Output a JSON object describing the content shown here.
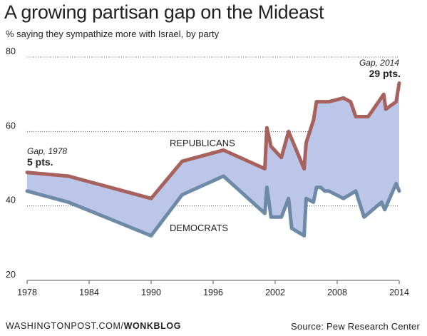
{
  "title": "A growing partisan gap on the Mideast",
  "subtitle": "% saying they sympathize more with Israel, by party",
  "footer": {
    "publisher": "WASHINGTONPOST.COM/",
    "section": "WONKBLOG",
    "source": "Source: Pew Research Center"
  },
  "colors": {
    "republicans": "#a8625e",
    "democrats": "#6d8aa6",
    "gap_fill": "#bcc6e8",
    "grid": "#333333",
    "axis": "#555555"
  },
  "chart_data": {
    "type": "area",
    "title": "A growing partisan gap on the Mideast",
    "subtitle": "% saying they sympathize more with Israel, by party",
    "xlim": [
      1978,
      2014
    ],
    "ylim": [
      20,
      80
    ],
    "x_ticks": [
      1978,
      1984,
      1990,
      1996,
      2002,
      2008,
      2014
    ],
    "x_tick_labels": [
      "1978",
      "1984",
      "1990",
      "1996",
      "2002",
      "2008",
      "2014"
    ],
    "y_ticks": [
      20,
      40,
      60,
      80
    ],
    "y_tick_labels": [
      "20",
      "40",
      "60",
      "80"
    ],
    "grid": true,
    "series": [
      {
        "name": "REPUBLICANS",
        "x": [
          1978,
          1982,
          1990,
          1993,
          1997,
          2001,
          2001.2,
          2001.6,
          2002.6,
          2003.3,
          2004.8,
          2005,
          2005.7,
          2006,
          2006.4,
          2006.8,
          2007.2,
          2008.6,
          2009.3,
          2009.8,
          2011,
          2012.5,
          2012.7,
          2013.7,
          2014
        ],
        "values": [
          49,
          48,
          42,
          52,
          55,
          50,
          61,
          56,
          53,
          60,
          50,
          57,
          63,
          68,
          68,
          68,
          68,
          69,
          68,
          64,
          64,
          70,
          66,
          68,
          73
        ]
      },
      {
        "name": "DEMOCRATS",
        "x": [
          1978,
          1982,
          1990,
          1993,
          1997,
          2001,
          2001.2,
          2001.6,
          2002.6,
          2003.3,
          2003.6,
          2004.8,
          2005,
          2005.7,
          2006,
          2006.4,
          2006.8,
          2007.2,
          2008.6,
          2009.8,
          2010.6,
          2012.3,
          2012.6,
          2013.7,
          2014
        ],
        "values": [
          44,
          41,
          32,
          43,
          48,
          38,
          45,
          37,
          37,
          42,
          34,
          32,
          42,
          41,
          45,
          45,
          44,
          44,
          42,
          44,
          37,
          41,
          39,
          46,
          44
        ]
      }
    ],
    "annotations": [
      {
        "label": "Gap, 1978",
        "value": "5 pts."
      },
      {
        "label": "Gap, 2014",
        "value": "29 pts."
      }
    ]
  }
}
